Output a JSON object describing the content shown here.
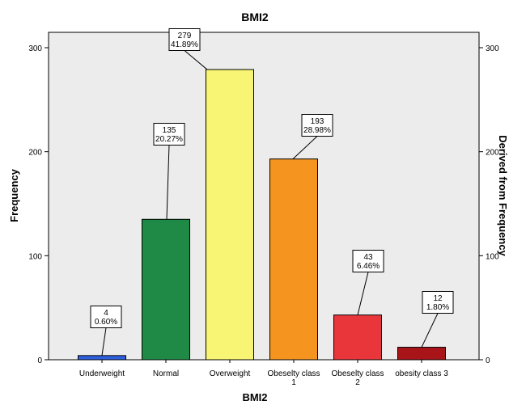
{
  "chart_data": {
    "type": "bar",
    "title": "BMI2",
    "xlabel": "BMI2",
    "ylabel": "Frequency",
    "ylabel_right": "Derived from Frequency",
    "ylim": [
      0,
      300
    ],
    "yticks": [
      "0",
      "100",
      "200",
      "300"
    ],
    "categories": [
      [
        "Underweight"
      ],
      [
        "Normal"
      ],
      [
        "Overweight"
      ],
      [
        "Obeselty class",
        "1"
      ],
      [
        "Obeselty class",
        "2"
      ],
      [
        "obesity class 3"
      ]
    ],
    "values": [
      4,
      135,
      279,
      193,
      43,
      12
    ],
    "percent_labels": [
      "0.60%",
      "20.27%",
      "41.89%",
      "28.98%",
      "6.46%",
      "1.80%"
    ],
    "count_labels": [
      "4",
      "135",
      "279",
      "193",
      "43",
      "12"
    ],
    "colors": [
      "#2e5fde",
      "#1e8a45",
      "#f7f573",
      "#f5951f",
      "#e8363a",
      "#a81417"
    ],
    "plot_background": "#ececec",
    "grid": false
  }
}
